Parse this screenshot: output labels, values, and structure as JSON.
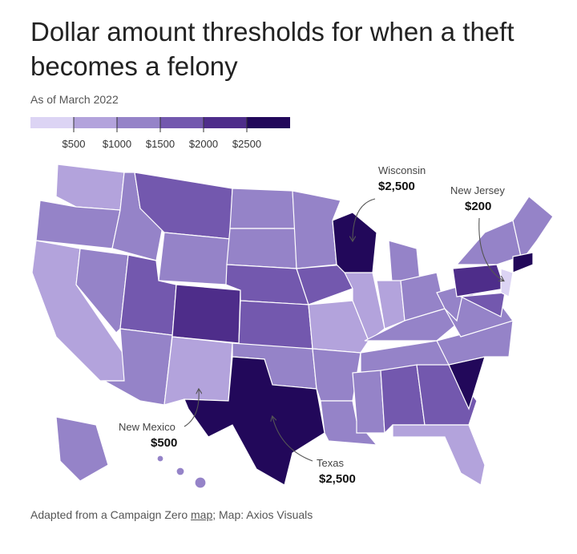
{
  "title": "Dollar amount thresholds for when a theft becomes a felony",
  "subtitle": "As of March 2022",
  "legend": {
    "lim": [
      0,
      3000
    ],
    "colors": [
      "#dcd4f4",
      "#b3a3dc",
      "#9583c8",
      "#7358ae",
      "#4e2d8a",
      "#22085a"
    ],
    "ticks": [
      {
        "value": 500,
        "label": "$500"
      },
      {
        "value": 1000,
        "label": "$1000"
      },
      {
        "value": 1500,
        "label": "$1500"
      },
      {
        "value": 2000,
        "label": "$2000"
      },
      {
        "value": 2500,
        "label": "$2500"
      }
    ]
  },
  "annotations": [
    {
      "state": "Wisconsin",
      "value": 2500,
      "value_label": "$2,500"
    },
    {
      "state": "New Jersey",
      "value": 200,
      "value_label": "$200"
    },
    {
      "state": "New Mexico",
      "value": 500,
      "value_label": "$500"
    },
    {
      "state": "Texas",
      "value": 2500,
      "value_label": "$2,500"
    }
  ],
  "footer": {
    "text_before": "Adapted from a Campaign Zero ",
    "link": "map",
    "text_after": "; Map: Axios Visuals"
  }
}
